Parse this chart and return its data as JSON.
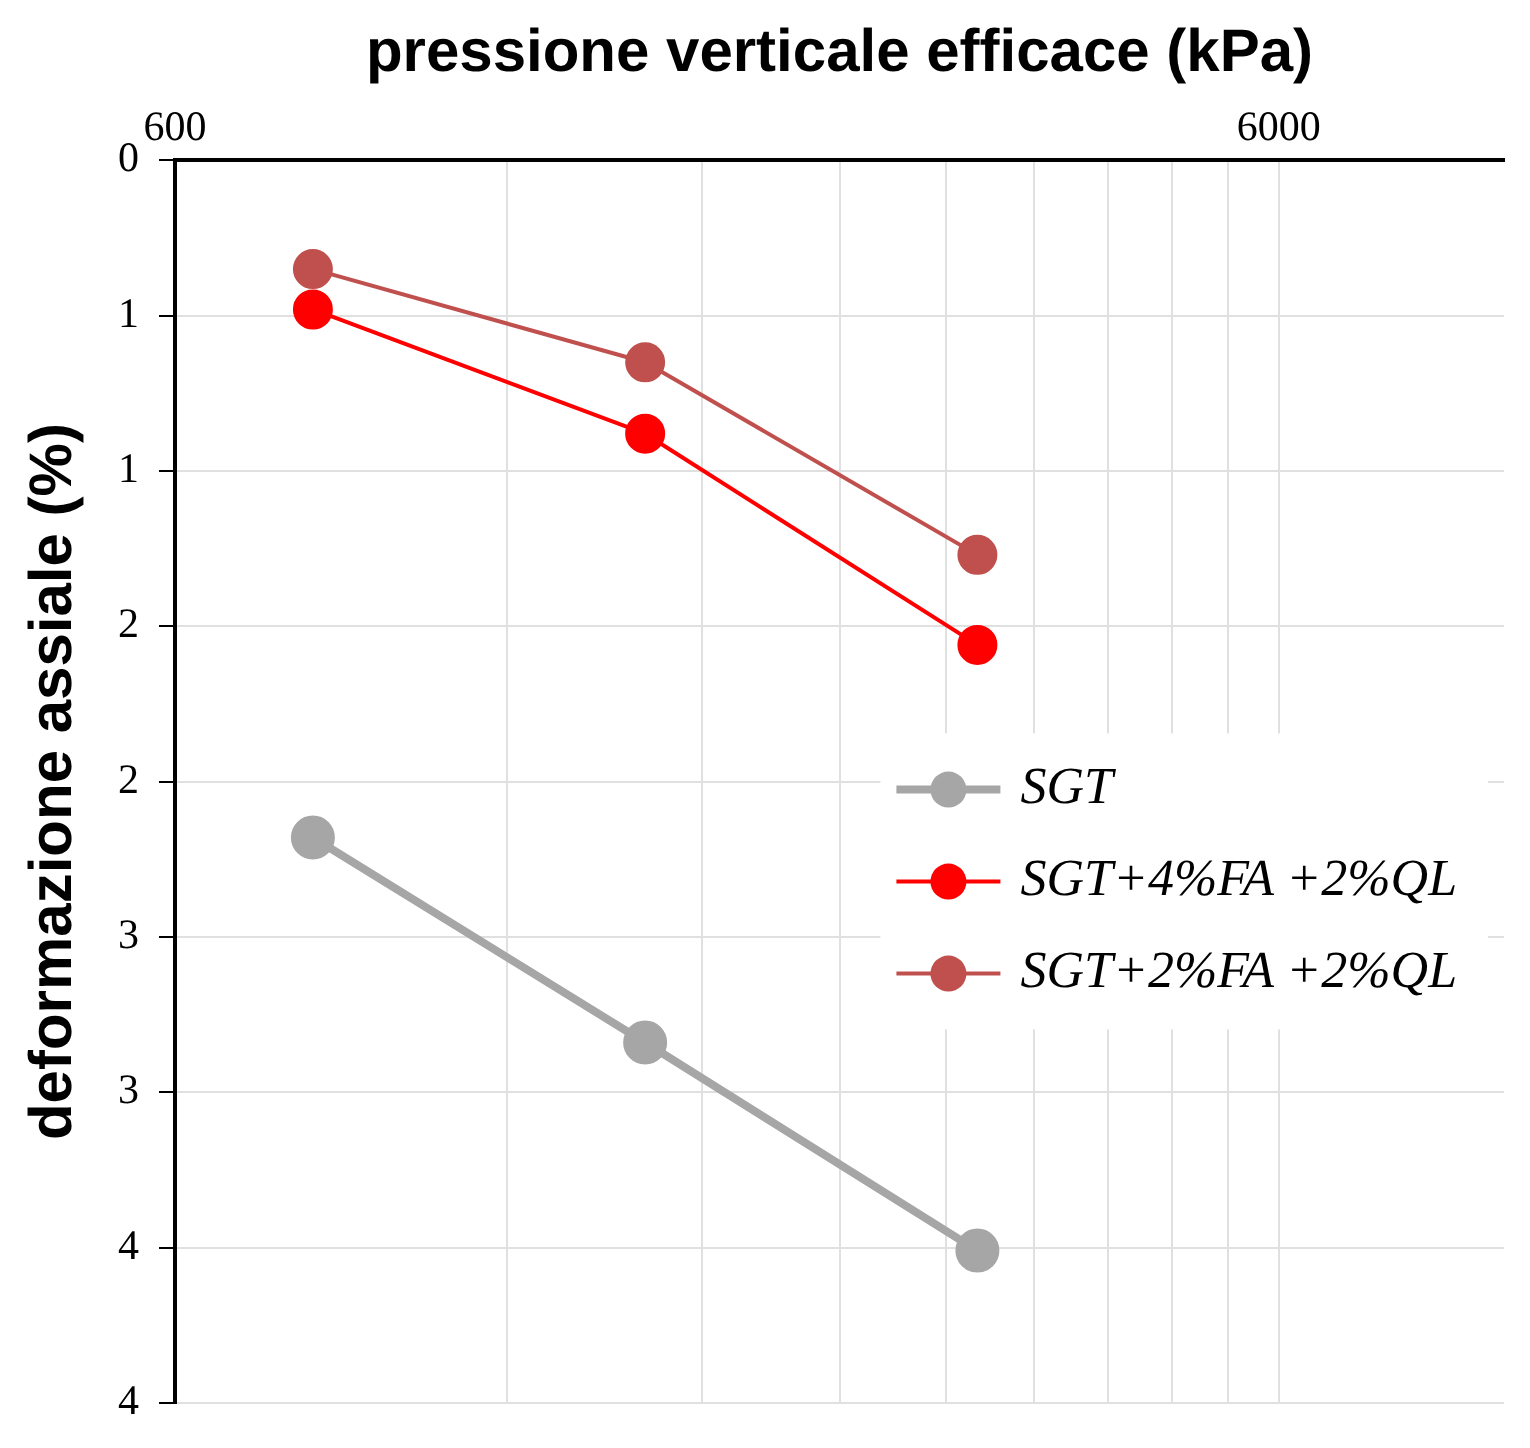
{
  "chart_data": {
    "type": "line",
    "xlabel": "pressione verticale efficace (kPa)",
    "ylabel": "deformazione assiale (%)",
    "x": [
      800,
      1600,
      3200
    ],
    "series": [
      {
        "name": "SGT",
        "color": "#a6a6a6",
        "values": [
          2.18,
          2.84,
          3.51
        ]
      },
      {
        "name": "SGT+4%FA +2%QL",
        "color": "#ff0000",
        "values": [
          0.48,
          0.88,
          1.56
        ]
      },
      {
        "name": "SGT+2%FA +2%QL",
        "color": "#c0504d",
        "values": [
          0.35,
          0.65,
          1.27
        ]
      }
    ],
    "log": "x",
    "xlim": [
      600,
      9600
    ],
    "xticks": [
      600,
      {
        "value": 1200,
        "label": null
      },
      {
        "value": 1800,
        "label": null
      },
      {
        "value": 2400,
        "label": null
      },
      {
        "value": 3000,
        "label": null
      },
      {
        "value": 3600,
        "label": null
      },
      {
        "value": 4200,
        "label": null
      },
      {
        "value": 4800,
        "label": null
      },
      {
        "value": 5400,
        "label": null
      },
      6000
    ],
    "ylim": [
      4,
      0
    ],
    "yticks": [
      0,
      {
        "value": 0.5,
        "label": "1"
      },
      1,
      {
        "value": 1.5,
        "label": "2"
      },
      2,
      {
        "value": 2.5,
        "label": "3"
      },
      3,
      {
        "value": 3.5,
        "label": "4"
      },
      4
    ],
    "grid": true,
    "legend": "right",
    "marker": "circle",
    "line_style": "solid"
  }
}
